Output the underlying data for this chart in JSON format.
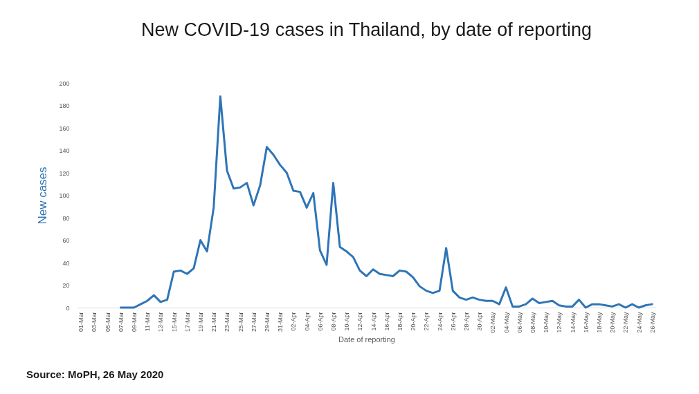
{
  "chart_data": {
    "type": "line",
    "title": "New COVID-19 cases in Thailand, by date of reporting",
    "xlabel": "Date of reporting",
    "ylabel": "New cases",
    "categories": [
      "01-Mar",
      null,
      "03-Mar",
      null,
      "05-Mar",
      null,
      "07-Mar",
      null,
      "09-Mar",
      null,
      "11-Mar",
      null,
      "13-Mar",
      null,
      "15-Mar",
      null,
      "17-Mar",
      null,
      "19-Mar",
      null,
      "21-Mar",
      null,
      "23-Mar",
      null,
      "25-Mar",
      null,
      "27-Mar",
      null,
      "29-Mar",
      null,
      "31-Mar",
      null,
      "02-Apr",
      null,
      "04-Apr",
      null,
      "06-Apr",
      null,
      "08-Apr",
      null,
      "10-Apr",
      null,
      "12-Apr",
      null,
      "14-Apr",
      null,
      "16-Apr",
      null,
      "18-Apr",
      null,
      "20-Apr",
      null,
      "22-Apr",
      null,
      "24-Apr",
      null,
      "26-Apr",
      null,
      "28-Apr",
      null,
      "30-Apr",
      null,
      "02-May",
      null,
      "04-May",
      null,
      "06-May",
      null,
      "08-May",
      null,
      "10-May",
      null,
      "12-May",
      null,
      "14-May",
      null,
      "16-May",
      null,
      "18-May",
      null,
      "20-May",
      null,
      "22-May",
      null,
      "24-May",
      null,
      "26-May"
    ],
    "series": [
      {
        "color": "#2e75b6",
        "values": [
          null,
          null,
          null,
          null,
          null,
          null,
          0,
          0,
          0,
          3,
          6,
          11,
          5,
          7,
          32,
          33,
          30,
          35,
          60,
          50,
          89,
          188,
          122,
          106,
          107,
          111,
          91,
          109,
          143,
          136,
          127,
          120,
          104,
          103,
          89,
          102,
          51,
          38,
          111,
          54,
          50,
          45,
          33,
          28,
          34,
          30,
          29,
          28,
          33,
          32,
          27,
          19,
          15,
          13,
          15,
          53,
          15,
          9,
          7,
          9,
          7,
          6,
          6,
          3,
          18,
          1,
          1,
          3,
          8,
          4,
          5,
          6,
          2,
          1,
          1,
          7,
          0,
          3,
          3,
          2,
          1,
          3,
          0,
          3,
          0,
          2,
          3
        ]
      }
    ],
    "ylim": [
      0,
      200
    ],
    "yticks": [
      0,
      20,
      40,
      60,
      80,
      100,
      120,
      140,
      160,
      180,
      200
    ],
    "grid": false,
    "marker": "none",
    "line_style": "solid",
    "annotations": [
      "Source: MoPH, 26 May 2020"
    ]
  }
}
